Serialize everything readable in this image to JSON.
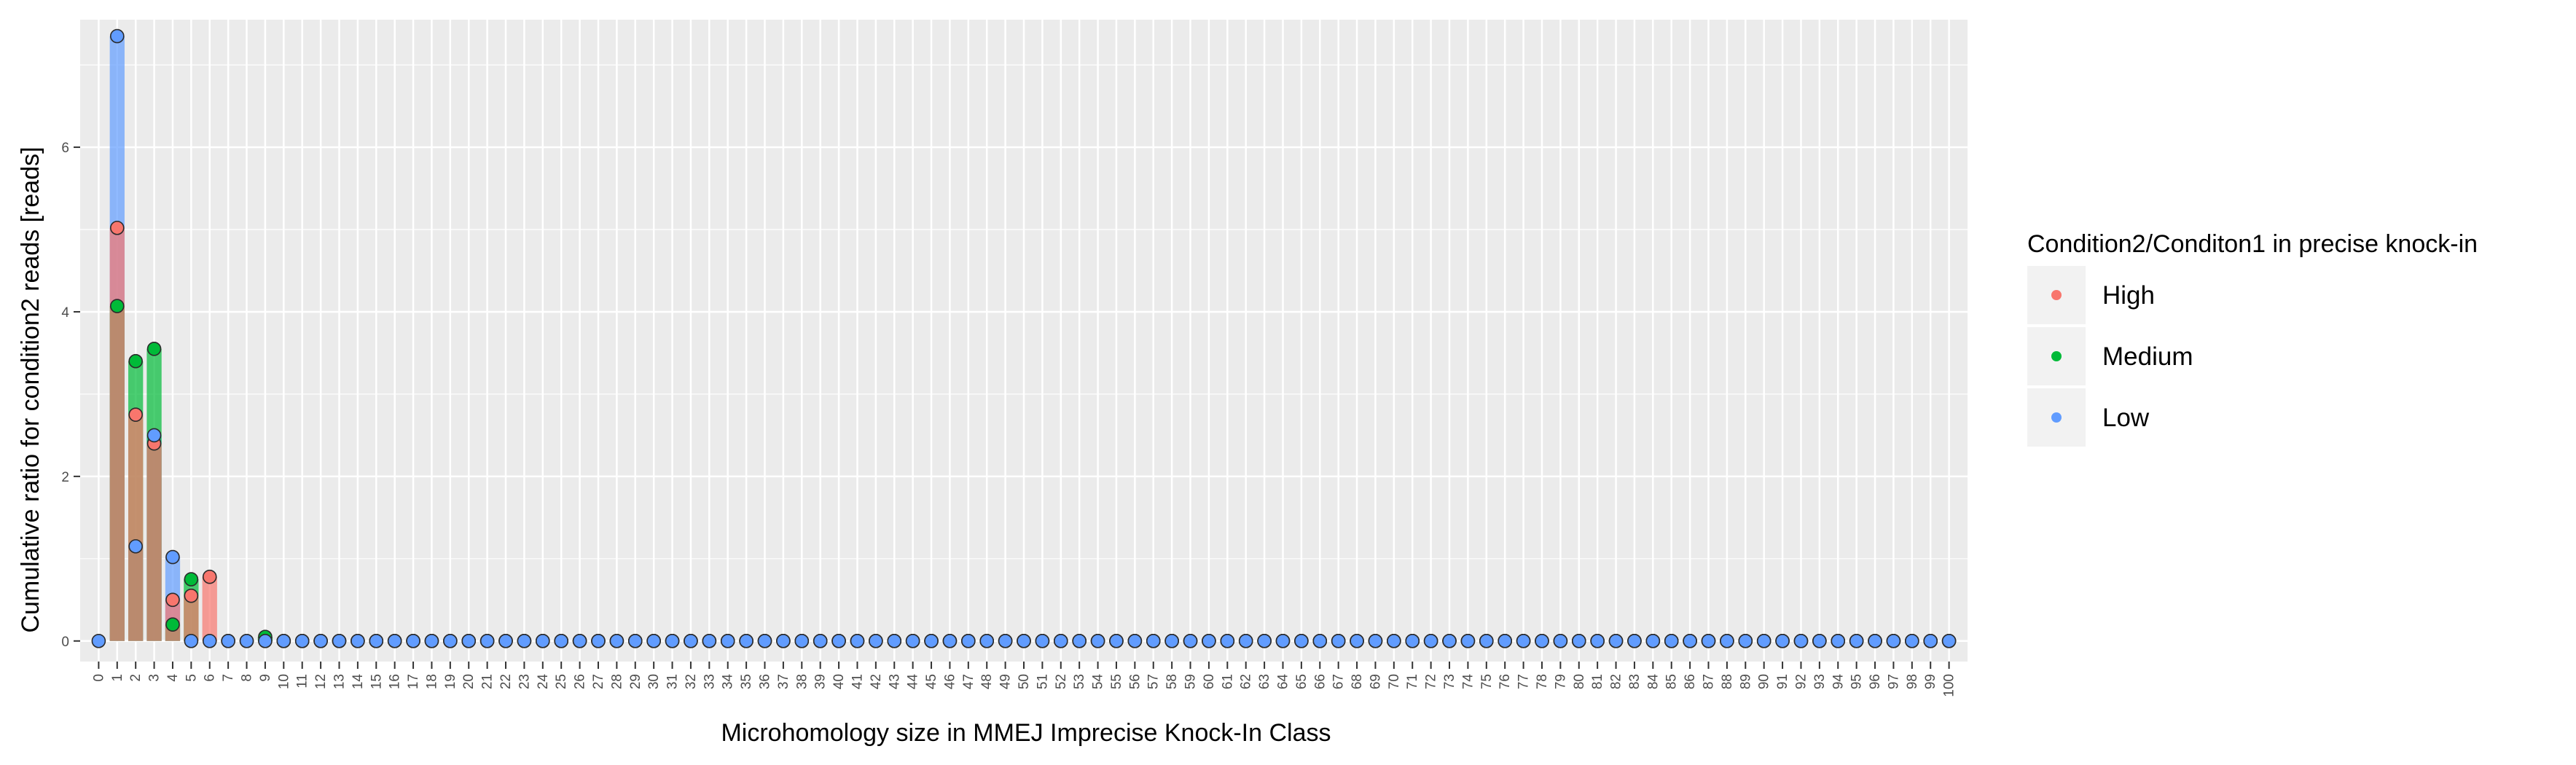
{
  "chart_data": {
    "type": "bar",
    "xlabel": "Microhomology size in MMEJ Imprecise Knock-In Class",
    "ylabel": "Cumulative ratio for condition2 reads [reads]",
    "xlim": [
      -1,
      101
    ],
    "ylim": [
      -0.25,
      7.55
    ],
    "y_ticks": [
      0,
      2,
      4,
      6
    ],
    "x_categories": [
      0,
      1,
      2,
      3,
      4,
      5,
      6,
      7,
      8,
      9,
      10,
      11,
      12,
      13,
      14,
      15,
      16,
      17,
      18,
      19,
      20,
      21,
      22,
      23,
      24,
      25,
      26,
      27,
      28,
      29,
      30,
      31,
      32,
      33,
      34,
      35,
      36,
      37,
      38,
      39,
      40,
      41,
      42,
      43,
      44,
      45,
      46,
      47,
      48,
      49,
      50,
      51,
      52,
      53,
      54,
      55,
      56,
      57,
      58,
      59,
      60,
      61,
      62,
      63,
      64,
      65,
      66,
      67,
      68,
      69,
      70,
      71,
      72,
      73,
      74,
      75,
      76,
      77,
      78,
      79,
      80,
      81,
      82,
      83,
      84,
      85,
      86,
      87,
      88,
      89,
      90,
      91,
      92,
      93,
      94,
      95,
      96,
      97,
      98,
      99,
      100
    ],
    "grid": true,
    "legend_position": "right",
    "legend_title": "Condition2/Conditon1 in precise knock-in",
    "series": [
      {
        "name": "High",
        "color": "#F8766D",
        "points": [
          [
            1,
            5.02
          ],
          [
            2,
            2.75
          ],
          [
            3,
            2.4
          ],
          [
            4,
            0.5
          ],
          [
            5,
            0.55
          ],
          [
            6,
            0.78
          ]
        ],
        "zero_from": 7,
        "zero_to": 100
      },
      {
        "name": "Medium",
        "color": "#00BA38",
        "points": [
          [
            1,
            4.07
          ],
          [
            2,
            3.4
          ],
          [
            3,
            3.55
          ],
          [
            4,
            0.2
          ],
          [
            5,
            0.75
          ],
          [
            9,
            0.05
          ]
        ],
        "zero_from": 10,
        "zero_to": 100
      },
      {
        "name": "Low",
        "color": "#619CFF",
        "points": [
          [
            0,
            0
          ],
          [
            1,
            7.35
          ],
          [
            2,
            1.15
          ],
          [
            3,
            2.5
          ],
          [
            4,
            1.02
          ],
          [
            5,
            0.0
          ],
          [
            6,
            0.0
          ]
        ],
        "zero_from": 7,
        "zero_to": 100
      }
    ]
  }
}
